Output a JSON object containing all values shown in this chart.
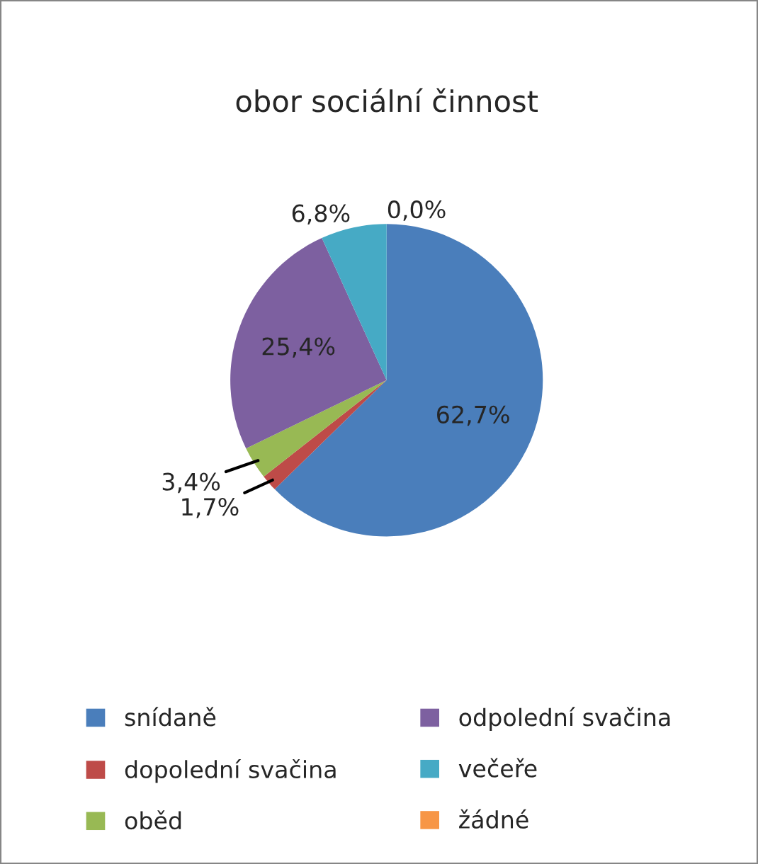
{
  "chart_data": {
    "type": "pie",
    "title": "obor sociální činnost",
    "categories": [
      "snídaně",
      "dopolední svačina",
      "oběd",
      "odpolední svačina",
      "večeře",
      "žádné"
    ],
    "values": [
      62.7,
      1.7,
      3.4,
      25.4,
      6.8,
      0.0
    ],
    "value_labels": [
      "62,7%",
      "1,7%",
      "3,4%",
      "25,4%",
      "6,8%",
      "0,0%"
    ],
    "colors": [
      "#4a7ebb",
      "#be4b48",
      "#98b954",
      "#7d60a0",
      "#46aac5",
      "#f79646"
    ],
    "legend": "bottom"
  }
}
